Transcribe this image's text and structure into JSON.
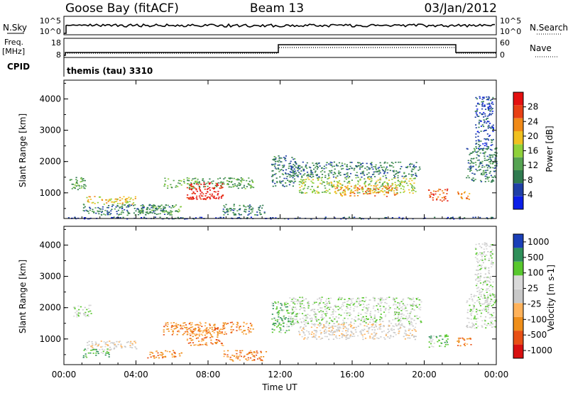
{
  "header": {
    "station": "Goose Bay (fitACF)",
    "beam": "Beam 13",
    "date": "03/Jan/2012"
  },
  "nsky_panel": {
    "left_label": "N.Sky",
    "left_top_tick": "10^5",
    "left_bottom_tick": "10^0",
    "right_label": "N.Search",
    "right_top_tick": "10^5",
    "right_bottom_tick": "10^0"
  },
  "freq_panel": {
    "left_label_line1": "Freq.",
    "left_label_line2": "[MHz]",
    "left_top_tick": "18",
    "left_bottom_tick": "8",
    "right_label": "Nave",
    "right_top_tick": "60",
    "right_bottom_tick": "0"
  },
  "cpid": {
    "label": "CPID",
    "program": "themis (tau) 3310"
  },
  "colors": {
    "power_scale": [
      "#0b1ee8",
      "#1f3fa6",
      "#2f7a4f",
      "#56a352",
      "#8fd13a",
      "#f0c020",
      "#f08a18",
      "#e84014",
      "#e41010"
    ],
    "velocity_scale": [
      "#d81010",
      "#e85014",
      "#ef8e1a",
      "#ffb25a",
      "#c8c8c8",
      "#d9d9d9",
      "#58c82e",
      "#2f8f5a",
      "#1a3fb8"
    ]
  },
  "chart_data": [
    {
      "type": "heatmap",
      "ylabel": "Slant Range [km]",
      "xlabel": "",
      "x_ticks": [
        "00:00",
        "04:00",
        "08:00",
        "12:00",
        "16:00",
        "20:00",
        "00:00"
      ],
      "xlim_hours": [
        0,
        24
      ],
      "y_ticks": [
        "1000",
        "2000",
        "3000",
        "4000"
      ],
      "ylim": [
        180,
        4600
      ],
      "colorbar_label": "Power [dB]",
      "colorbar_ticks": [
        "4",
        "8",
        "12",
        "16",
        "20",
        "24",
        "28"
      ],
      "colorbar_range": [
        0,
        32
      ],
      "features": [
        {
          "t0": 0.3,
          "t1": 1.2,
          "r0": 1100,
          "r1": 1550,
          "level": 3
        },
        {
          "t0": 1.2,
          "t1": 4.0,
          "r0": 650,
          "r1": 900,
          "level": 5
        },
        {
          "t0": 1.0,
          "t1": 6.0,
          "r0": 300,
          "r1": 650,
          "level": 2
        },
        {
          "t0": 4.2,
          "t1": 6.5,
          "r0": 350,
          "r1": 650,
          "level": 3
        },
        {
          "t0": 5.5,
          "t1": 10.5,
          "r0": 1150,
          "r1": 1500,
          "level": 3
        },
        {
          "t0": 6.8,
          "t1": 8.8,
          "r0": 800,
          "r1": 1350,
          "level": 8
        },
        {
          "t0": 8.8,
          "t1": 11.2,
          "r0": 300,
          "r1": 650,
          "level": 2
        },
        {
          "t0": 11.5,
          "t1": 12.8,
          "r0": 1200,
          "r1": 2200,
          "level": 2
        },
        {
          "t0": 12.5,
          "t1": 19.8,
          "r0": 1500,
          "r1": 2000,
          "level": 2
        },
        {
          "t0": 13.0,
          "t1": 19.5,
          "r0": 1000,
          "r1": 1500,
          "level": 4
        },
        {
          "t0": 15.0,
          "t1": 18.5,
          "r0": 900,
          "r1": 1250,
          "level": 6
        },
        {
          "t0": 20.2,
          "t1": 21.3,
          "r0": 750,
          "r1": 1150,
          "level": 7
        },
        {
          "t0": 21.8,
          "t1": 22.6,
          "r0": 800,
          "r1": 1050,
          "level": 6
        },
        {
          "t0": 22.3,
          "t1": 24.0,
          "r0": 1350,
          "r1": 2450,
          "level": 2
        },
        {
          "t0": 22.8,
          "t1": 23.8,
          "r0": 2400,
          "r1": 4100,
          "level": 1
        },
        {
          "t0": 0.0,
          "t1": 24.0,
          "r0": 180,
          "r1": 240,
          "level": 1
        }
      ]
    },
    {
      "type": "heatmap",
      "ylabel": "Slant Range [km]",
      "xlabel": "Time UT",
      "x_ticks": [
        "00:00",
        "04:00",
        "08:00",
        "12:00",
        "16:00",
        "20:00",
        "00:00"
      ],
      "xlim_hours": [
        0,
        24
      ],
      "y_ticks": [
        "1000",
        "2000",
        "3000",
        "4000"
      ],
      "ylim": [
        180,
        4600
      ],
      "colorbar_label": "Velocity [m s-1]",
      "colorbar_ticks": [
        "1000",
        "500",
        "100",
        "25",
        "-25",
        "-100",
        "-500",
        "-1000"
      ],
      "features": [
        {
          "t0": 0.5,
          "t1": 1.5,
          "r0": 1700,
          "r1": 2100,
          "level": 5
        },
        {
          "t0": 1.2,
          "t1": 4.0,
          "r0": 650,
          "r1": 950,
          "level": 4
        },
        {
          "t0": 1.0,
          "t1": 2.5,
          "r0": 400,
          "r1": 700,
          "level": 6
        },
        {
          "t0": 4.5,
          "t1": 6.5,
          "r0": 400,
          "r1": 650,
          "level": 2
        },
        {
          "t0": 5.5,
          "t1": 10.5,
          "r0": 1150,
          "r1": 1550,
          "level": 2
        },
        {
          "t0": 6.8,
          "t1": 8.8,
          "r0": 800,
          "r1": 1350,
          "level": 2
        },
        {
          "t0": 8.8,
          "t1": 11.2,
          "r0": 300,
          "r1": 650,
          "level": 2
        },
        {
          "t0": 11.5,
          "t1": 12.8,
          "r0": 1200,
          "r1": 2200,
          "level": 6
        },
        {
          "t0": 12.5,
          "t1": 19.8,
          "r0": 1500,
          "r1": 2350,
          "level": 5
        },
        {
          "t0": 13.0,
          "t1": 19.5,
          "r0": 1000,
          "r1": 1500,
          "level": 4
        },
        {
          "t0": 20.2,
          "t1": 21.3,
          "r0": 750,
          "r1": 1150,
          "level": 6
        },
        {
          "t0": 21.8,
          "t1": 22.6,
          "r0": 800,
          "r1": 1050,
          "level": 2
        },
        {
          "t0": 22.3,
          "t1": 24.0,
          "r0": 1350,
          "r1": 2450,
          "level": 5
        },
        {
          "t0": 22.8,
          "t1": 23.8,
          "r0": 2400,
          "r1": 4100,
          "level": 5
        }
      ]
    }
  ]
}
